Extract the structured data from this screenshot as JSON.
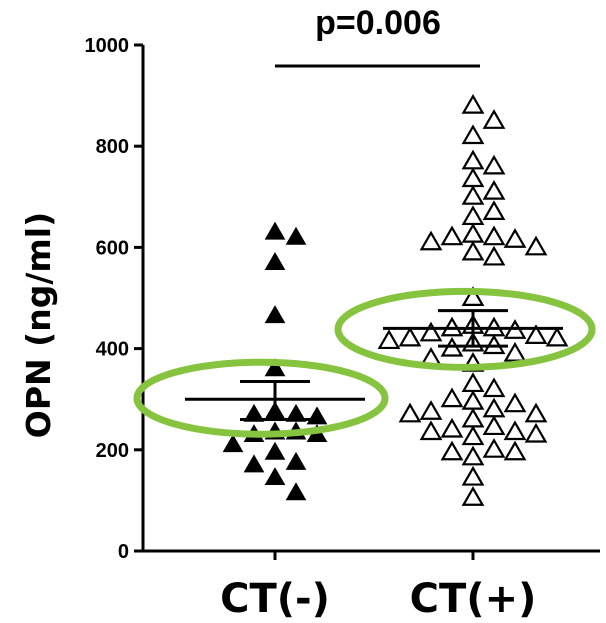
{
  "chart_data": {
    "type": "scatter",
    "title": "",
    "xlabel": "",
    "ylabel": "OPN (ng/ml)",
    "ylim": [
      0,
      1000
    ],
    "yticks": [
      0,
      200,
      400,
      600,
      800,
      1000
    ],
    "categories": [
      "CT(-)",
      "CT(+)"
    ],
    "annotation": "p=0.006",
    "grid": false,
    "series": [
      {
        "category": "CT(-)",
        "marker": "filled-triangle",
        "mean": 300,
        "sem_upper": 335,
        "sem_lower": 260,
        "values": [
          630,
          620,
          570,
          465,
          360,
          275,
          270,
          265,
          270,
          235,
          235,
          230,
          230,
          210,
          195,
          175,
          170,
          145,
          115
        ]
      },
      {
        "category": "CT(+)",
        "marker": "open-triangle",
        "mean": 440,
        "sem_upper": 475,
        "sem_lower": 405,
        "values": [
          880,
          850,
          820,
          770,
          760,
          735,
          710,
          700,
          670,
          660,
          625,
          620,
          620,
          615,
          610,
          600,
          590,
          580,
          500,
          445,
          440,
          440,
          435,
          430,
          425,
          420,
          420,
          415,
          410,
          405,
          400,
          390,
          380,
          370,
          330,
          320,
          300,
          295,
          290,
          280,
          275,
          270,
          270,
          260,
          245,
          240,
          235,
          235,
          230,
          225,
          200,
          195,
          195,
          185,
          145,
          105
        ]
      }
    ]
  },
  "colors": {
    "axis": "#000000",
    "marker": "#000000",
    "highlight_ellipse": "#86c440"
  }
}
